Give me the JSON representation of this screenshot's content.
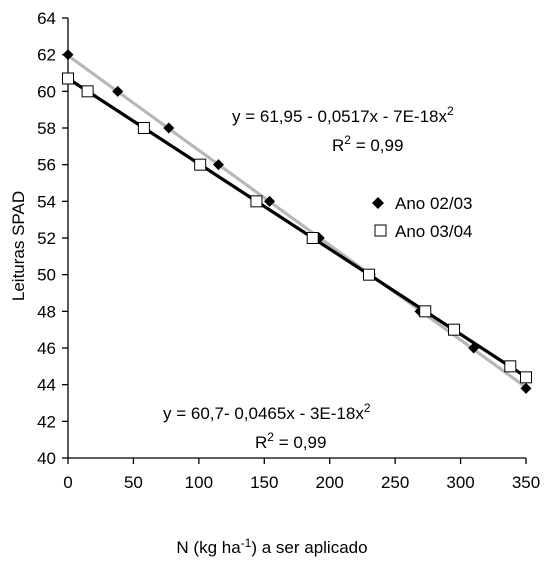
{
  "chart_data": {
    "type": "scatter",
    "xlabel_parts": [
      "N (kg ha",
      "-1",
      ") a ser aplicado"
    ],
    "ylabel": "Leituras SPAD",
    "xlim": [
      0,
      350
    ],
    "ylim": [
      40,
      64
    ],
    "xticks": [
      0,
      50,
      100,
      150,
      200,
      250,
      300,
      350
    ],
    "yticks": [
      40,
      42,
      44,
      46,
      48,
      50,
      52,
      54,
      56,
      58,
      60,
      62,
      64
    ],
    "grid": false,
    "legend_position": "right-middle",
    "series": [
      {
        "name": "Ano 02/03",
        "marker": "diamond-filled",
        "points": [
          {
            "x": 0,
            "y": 62
          },
          {
            "x": 38,
            "y": 60
          },
          {
            "x": 77,
            "y": 58
          },
          {
            "x": 115,
            "y": 56
          },
          {
            "x": 154,
            "y": 54
          },
          {
            "x": 192,
            "y": 52
          },
          {
            "x": 231,
            "y": 50
          },
          {
            "x": 269,
            "y": 48
          },
          {
            "x": 310,
            "y": 46
          },
          {
            "x": 350,
            "y": 43.8
          }
        ],
        "fit": {
          "a": 61.95,
          "b": -0.0517,
          "color": "#b8b8b8"
        },
        "equation": {
          "main": "y =  61,95 - 0,0517x - 7E-18x",
          "sup": "2"
        },
        "r2": {
          "pre": "R",
          "sup": "2",
          "post": " = 0,99"
        }
      },
      {
        "name": "Ano 03/04",
        "marker": "square-open",
        "points": [
          {
            "x": 0,
            "y": 60.7
          },
          {
            "x": 15,
            "y": 60
          },
          {
            "x": 58,
            "y": 58
          },
          {
            "x": 101,
            "y": 56
          },
          {
            "x": 144,
            "y": 54
          },
          {
            "x": 187,
            "y": 52
          },
          {
            "x": 230,
            "y": 50
          },
          {
            "x": 273,
            "y": 48
          },
          {
            "x": 295,
            "y": 47
          },
          {
            "x": 338,
            "y": 45
          },
          {
            "x": 350,
            "y": 44.4
          }
        ],
        "fit": {
          "a": 60.7,
          "b": -0.0465,
          "color": "#000000"
        },
        "equation": {
          "main": "y =  60,7- 0,0465x - 3E-18x",
          "sup": "2"
        },
        "r2": {
          "pre": "R",
          "sup": "2",
          "post": " = 0,99"
        }
      }
    ]
  }
}
